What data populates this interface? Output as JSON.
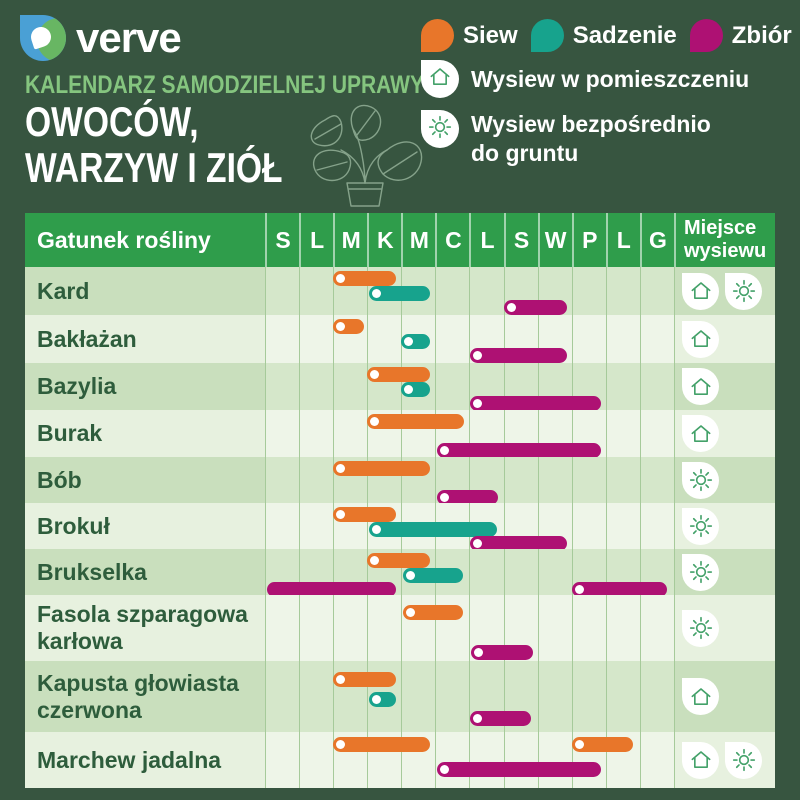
{
  "colors": {
    "page_bg": "#375540",
    "table_header_green": "#2f9d4b",
    "kicker_green": "#85c57f",
    "siew": "#e8762a",
    "sadzenie": "#17a38d",
    "zbior": "#ae1173",
    "icon_green": "#43a169",
    "logo_blue": "#4aa0d5",
    "logo_green": "#68b663"
  },
  "brand": {
    "name": "verve"
  },
  "heading": {
    "kicker": "KALENDARZ SAMODZIELNEJ UPRAWY",
    "title_line1": "OWOCÓW,",
    "title_line2": "WARZYW I ZIÓŁ"
  },
  "legend": {
    "series": [
      {
        "key": "siew",
        "label": "Siew",
        "color": "#e8762a"
      },
      {
        "key": "sadzenie",
        "label": "Sadzenie",
        "color": "#17a38d"
      },
      {
        "key": "zbior",
        "label": "Zbiór",
        "color": "#ae1173"
      }
    ],
    "indoor_label": "Wysiew w pomieszczeniu",
    "outdoor_label": "Wysiew bezpośrednio do gruntu",
    "indoor_icon": "house-icon",
    "outdoor_icon": "sun-icon"
  },
  "table": {
    "species_header": "Gatunek rośliny",
    "months": [
      "S",
      "L",
      "M",
      "K",
      "M",
      "C",
      "L",
      "S",
      "W",
      "P",
      "L",
      "G"
    ],
    "place_header": "Miejsce wysiewu"
  },
  "chart_data": {
    "type": "table",
    "subtype": "gantt-calendar",
    "x_axis": {
      "unit": "month",
      "labels": [
        "S",
        "L",
        "M",
        "K",
        "M",
        "C",
        "L",
        "S",
        "W",
        "P",
        "L",
        "G"
      ],
      "range": [
        0,
        12
      ],
      "note": "0 = start of January, 12 = end of December"
    },
    "series_legend": [
      {
        "key": "siew",
        "name": "Siew",
        "color": "#e8762a"
      },
      {
        "key": "sadzenie",
        "name": "Sadzenie",
        "color": "#17a38d"
      },
      {
        "key": "zbior",
        "name": "Zbiór",
        "color": "#ae1173"
      }
    ],
    "rows": [
      {
        "name": "Kard",
        "place": [
          "house",
          "sun"
        ],
        "bars": [
          {
            "series": "siew",
            "start": 2.0,
            "end": 3.85,
            "start_marker": true
          },
          {
            "series": "sadzenie",
            "start": 3.05,
            "end": 4.85,
            "start_marker": true
          },
          {
            "series": "zbior",
            "start": 7.0,
            "end": 8.85,
            "start_marker": true
          }
        ]
      },
      {
        "name": "Bakłażan",
        "place": [
          "house"
        ],
        "bars": [
          {
            "series": "siew",
            "start": 2.0,
            "end": 2.9,
            "start_marker": true
          },
          {
            "series": "sadzenie",
            "start": 4.0,
            "end": 4.85,
            "start_marker": true
          },
          {
            "series": "zbior",
            "start": 6.0,
            "end": 8.85,
            "start_marker": true
          }
        ]
      },
      {
        "name": "Bazylia",
        "place": [
          "house"
        ],
        "bars": [
          {
            "series": "siew",
            "start": 3.0,
            "end": 4.85,
            "start_marker": true
          },
          {
            "series": "sadzenie",
            "start": 4.0,
            "end": 4.85,
            "start_marker": true
          },
          {
            "series": "zbior",
            "start": 6.0,
            "end": 9.85,
            "start_marker": true
          }
        ]
      },
      {
        "name": "Burak",
        "place": [
          "house"
        ],
        "bars": [
          {
            "series": "siew",
            "start": 3.0,
            "end": 5.85,
            "start_marker": true
          },
          {
            "series": "zbior",
            "start": 5.05,
            "end": 9.85,
            "start_marker": true
          }
        ]
      },
      {
        "name": "Bób",
        "place": [
          "sun"
        ],
        "bars": [
          {
            "series": "siew",
            "start": 2.0,
            "end": 4.85,
            "start_marker": true
          },
          {
            "series": "zbior",
            "start": 5.05,
            "end": 6.85,
            "start_marker": true
          }
        ]
      },
      {
        "name": "Brokuł",
        "place": [
          "sun"
        ],
        "bars": [
          {
            "series": "siew",
            "start": 2.0,
            "end": 3.85,
            "start_marker": true
          },
          {
            "series": "sadzenie",
            "start": 3.05,
            "end": 6.8,
            "start_marker": true
          },
          {
            "series": "zbior",
            "start": 6.0,
            "end": 8.85,
            "start_marker": true
          }
        ]
      },
      {
        "name": "Brukselka",
        "place": [
          "sun"
        ],
        "bars": [
          {
            "series": "siew",
            "start": 3.0,
            "end": 4.85,
            "start_marker": true
          },
          {
            "series": "sadzenie",
            "start": 4.05,
            "end": 5.8,
            "start_marker": true
          },
          {
            "series": "zbior",
            "start": 0.05,
            "end": 3.85,
            "start_marker": false
          },
          {
            "series": "zbior",
            "start": 9.0,
            "end": 11.8,
            "start_marker": true
          }
        ]
      },
      {
        "name": "Fasola szparagowa karłowa",
        "place": [
          "sun"
        ],
        "bars": [
          {
            "series": "siew",
            "start": 4.05,
            "end": 5.8,
            "start_marker": true
          },
          {
            "series": "zbior",
            "start": 6.05,
            "end": 7.85,
            "start_marker": true
          }
        ]
      },
      {
        "name": "Kapusta głowiasta czerwona",
        "place": [
          "house"
        ],
        "bars": [
          {
            "series": "siew",
            "start": 2.0,
            "end": 3.85,
            "start_marker": true
          },
          {
            "series": "sadzenie",
            "start": 3.05,
            "end": 3.85,
            "start_marker": true
          },
          {
            "series": "zbior",
            "start": 6.0,
            "end": 7.8,
            "start_marker": true
          }
        ]
      },
      {
        "name": "Marchew jadalna",
        "place": [
          "house",
          "sun"
        ],
        "bars": [
          {
            "series": "siew",
            "start": 2.0,
            "end": 4.85,
            "start_marker": true
          },
          {
            "series": "siew",
            "start": 9.0,
            "end": 10.8,
            "start_marker": true
          },
          {
            "series": "zbior",
            "start": 5.05,
            "end": 9.85,
            "start_marker": true
          }
        ]
      }
    ]
  }
}
